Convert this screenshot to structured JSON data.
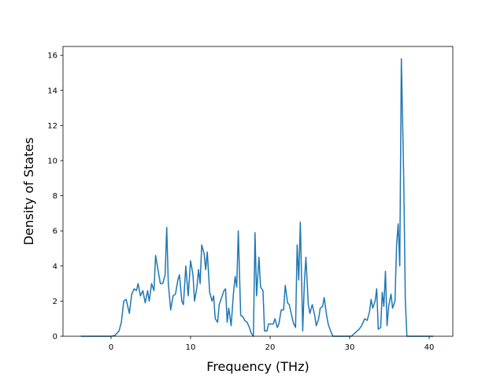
{
  "chart_data": {
    "type": "line",
    "x_label": "Frequency (THz)",
    "y_label": "Density of States",
    "color": "#1f77b4",
    "xlim": [
      -6.04,
      42.97
    ],
    "ylim": [
      0,
      16.5
    ],
    "xticks": [
      0,
      10,
      20,
      30,
      40
    ],
    "yticks": [
      0,
      2,
      4,
      6,
      8,
      10,
      12,
      14,
      16
    ],
    "x": [
      -3.8,
      0,
      0.5,
      1,
      1.3,
      1.6,
      1.9,
      2.3,
      2.6,
      2.9,
      3.2,
      3.4,
      3.7,
      4.0,
      4.3,
      4.6,
      4.8,
      5.1,
      5.4,
      5.6,
      5.9,
      6.2,
      6.5,
      6.8,
      7.0,
      7.2,
      7.5,
      7.8,
      8.1,
      8.4,
      8.6,
      8.9,
      9.1,
      9.4,
      9.7,
      10.0,
      10.3,
      10.5,
      10.8,
      11.0,
      11.2,
      11.4,
      11.7,
      11.9,
      12.1,
      12.4,
      12.7,
      12.9,
      13.1,
      13.4,
      13.6,
      13.9,
      14.2,
      14.4,
      14.6,
      14.8,
      15.1,
      15.4,
      15.6,
      15.8,
      16.0,
      16.3,
      16.6,
      16.8,
      17.1,
      17.4,
      17.6,
      17.9,
      18.1,
      18.3,
      18.6,
      18.8,
      19.1,
      19.3,
      19.6,
      19.8,
      20.1,
      20.4,
      20.6,
      20.9,
      21.1,
      21.4,
      21.7,
      21.9,
      22.2,
      22.4,
      22.7,
      22.9,
      23.2,
      23.4,
      23.6,
      23.8,
      24.1,
      24.3,
      24.5,
      24.8,
      25.0,
      25.3,
      25.6,
      25.8,
      26.1,
      26.3,
      26.6,
      26.8,
      27.1,
      27.3,
      27.6,
      27.9,
      30.2,
      30.7,
      31.2,
      31.5,
      31.9,
      32.2,
      32.5,
      32.7,
      32.9,
      33.2,
      33.4,
      33.6,
      33.9,
      34.1,
      34.3,
      34.5,
      34.7,
      34.9,
      35.2,
      35.4,
      35.7,
      35.9,
      36.1,
      36.3,
      36.5,
      36.8,
      37.0,
      37.2,
      40.5
    ],
    "values": [
      0,
      0,
      0.05,
      0.3,
      0.8,
      2.0,
      2.1,
      1.3,
      2.4,
      2.7,
      2.6,
      3.0,
      2.3,
      2.6,
      1.9,
      2.6,
      2.0,
      3.0,
      2.6,
      4.6,
      3.8,
      3.0,
      3.0,
      3.5,
      6.2,
      3.0,
      1.5,
      2.3,
      2.4,
      3.2,
      3.5,
      2.0,
      1.8,
      4.0,
      2.3,
      4.3,
      3.5,
      2.0,
      2.8,
      3.8,
      3.0,
      5.2,
      4.7,
      3.8,
      4.8,
      2.5,
      2.0,
      2.3,
      1.0,
      0.8,
      1.8,
      2.2,
      2.6,
      2.7,
      0.8,
      1.6,
      0.6,
      2.5,
      3.4,
      2.8,
      6.0,
      1.2,
      1.1,
      0.9,
      0.8,
      0.5,
      0.2,
      0,
      5.9,
      2.3,
      4.5,
      2.8,
      2.6,
      0.3,
      0.3,
      0.7,
      0.7,
      0.7,
      1.0,
      0.5,
      0.7,
      1.5,
      1.5,
      2.9,
      1.9,
      1.8,
      1.2,
      0.8,
      0.5,
      5.2,
      3.2,
      6.5,
      0.3,
      3.0,
      4.5,
      1.8,
      1.3,
      1.8,
      1.2,
      0.6,
      1.0,
      1.6,
      1.7,
      2.2,
      1.2,
      0.7,
      0.3,
      0,
      0,
      0.2,
      0.4,
      0.6,
      1.0,
      0.9,
      1.4,
      2.1,
      1.6,
      2.0,
      2.7,
      0.4,
      0.5,
      2.5,
      1.7,
      3.7,
      0.6,
      1.7,
      2.4,
      1.6,
      2.0,
      5.2,
      6.4,
      4.0,
      15.8,
      9.0,
      2.0,
      0,
      0
    ]
  }
}
